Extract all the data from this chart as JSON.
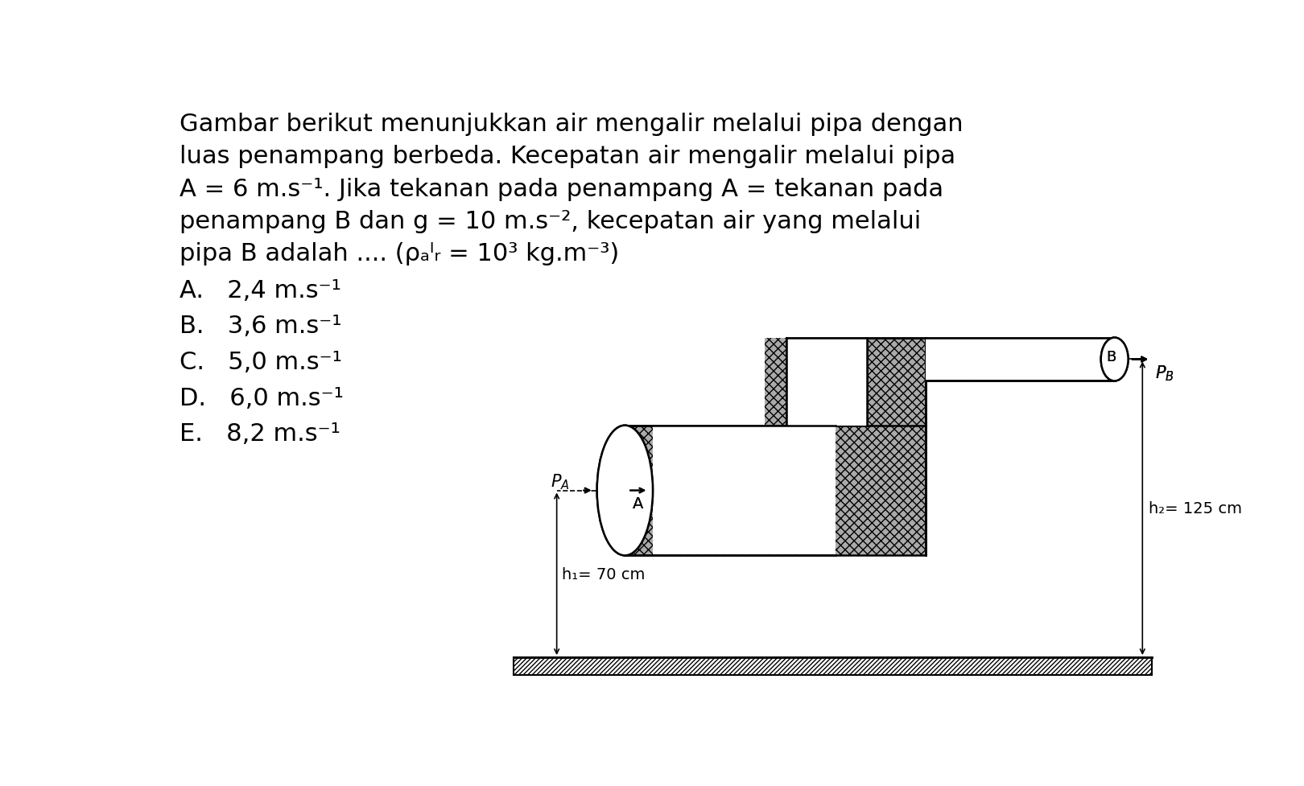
{
  "line1": "Gambar berikut menunjukkan air mengalir melalui pipa dengan",
  "line2": "luas penampang berbeda. Kecepatan air mengalir melalui pipa",
  "line3": "A = 6 m.s⁻¹. Jika tekanan pada penampang A = tekanan pada",
  "line4": "penampang B dan g = 10 m.s⁻², kecepatan air yang melalui",
  "line5": "pipa B adalah .... (ρₐᴵᵣ = 10³ kg.m⁻³)",
  "opt_A": "A.   2,4 m.s⁻¹",
  "opt_B": "B.   3,6 m.s⁻¹",
  "opt_C": "C.   5,0 m.s⁻¹",
  "opt_D": "D.   6,0 m.s⁻¹",
  "opt_E": "E.   8,2 m.s⁻¹",
  "h1_label": "h₁= 70 cm",
  "h2_label": "h₂= 125 cm",
  "PA_label": "P_A",
  "PB_label": "P_B",
  "A_label": "A",
  "B_label": "B",
  "bg_color": "#ffffff",
  "text_color": "#000000",
  "title_fontsize": 22,
  "opt_fontsize": 22
}
